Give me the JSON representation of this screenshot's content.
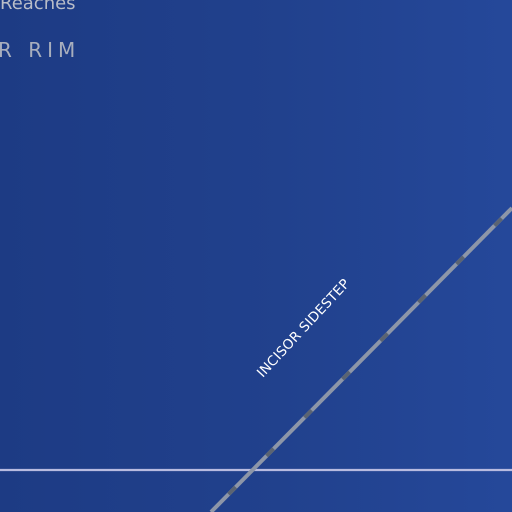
{
  "map": {
    "labels": {
      "region_top_partial": "Reaches",
      "region_rim_partial": "R  RIM",
      "road": "INCISOR SIDESTEP"
    },
    "colors": {
      "background": "#21418d",
      "road_casing": "#8d96a8",
      "road_dash": "#5b6472",
      "boundary_line": "#b8bbe0",
      "road_label": "#ffffff",
      "region_label": "#b0b5c2"
    }
  }
}
